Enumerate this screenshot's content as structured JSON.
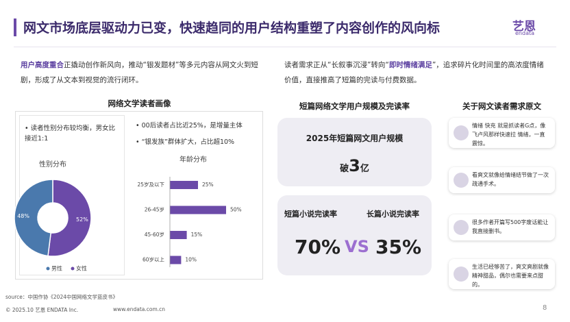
{
  "header": {
    "title": "网文市场底层驱动力已变，快速趋同的用户结构重塑了内容创作的风向标",
    "logo_cn": "艺恩",
    "logo_en": "endata"
  },
  "intro_left": {
    "highlight": "用户高度重合",
    "text": "正撬动创作新风向，推动“银发题材”等多元内容从网文火到短剧，形成了从文本到视觉的流行闭环。"
  },
  "intro_right": {
    "text_before": "读者需求正从“长叙事沉浸”转向“",
    "highlight": "即时情绪满足",
    "text_after": "”，追求碎片化时间里的高浓度情绪价值，直接推高了短篇的完读与付费数据。"
  },
  "portrait": {
    "title": "网络文学读者画像",
    "gender_bullet": "读者性别分布较均衡，男女比接近1:1",
    "age_bullets": [
      "00后读者占比近25%，是增量主体",
      "“银发族”群体扩大，占比超10%"
    ]
  },
  "chart_data": [
    {
      "type": "pie",
      "title": "性别分布",
      "categories": [
        "男性",
        "女性"
      ],
      "values": [
        48,
        52
      ],
      "value_labels": [
        "48%",
        "52%"
      ],
      "colors": [
        "#4a79ad",
        "#6b4aa8"
      ]
    },
    {
      "type": "bar",
      "title": "年龄分布",
      "categories": [
        "25岁及以下",
        "26-45岁",
        "45-60岁",
        "60岁以上"
      ],
      "values": [
        25,
        50,
        15,
        10
      ],
      "value_labels": [
        "25%",
        "50%",
        "15%",
        "10%"
      ],
      "color": "#6b4aa8"
    }
  ],
  "scale": {
    "title": "短篇网络文学用户规模及完读率",
    "card_title": "2025年短篇网文用户规模",
    "prefix": "破",
    "number": "3",
    "unit": "亿",
    "short_label": "短篇小说完读率",
    "long_label": "长篇小说完读率",
    "short_value": "70%",
    "vs": "VS",
    "long_value": "35%"
  },
  "quotes": {
    "title": "关于网文读者需求原文",
    "items": [
      "情绪 快充 就是抓读者G点，像飞卢风那样快速拉 情绪，一直震惊。",
      "看爽文就像给情绪结节做了一次疏通手术。",
      "很多作者开篇写500字废话能让我直接删书。",
      "生活已经够苦了，爽文爽剧就像精神甜品，偶尔也需要来点甜的。"
    ]
  },
  "footer": {
    "source": "source：中国作协《2024中国网络文学蓝皮书》",
    "copyright": "© 2025.10 艺恩 ENDATA Inc.",
    "website": "www.endata.com.cn",
    "page": "8"
  }
}
